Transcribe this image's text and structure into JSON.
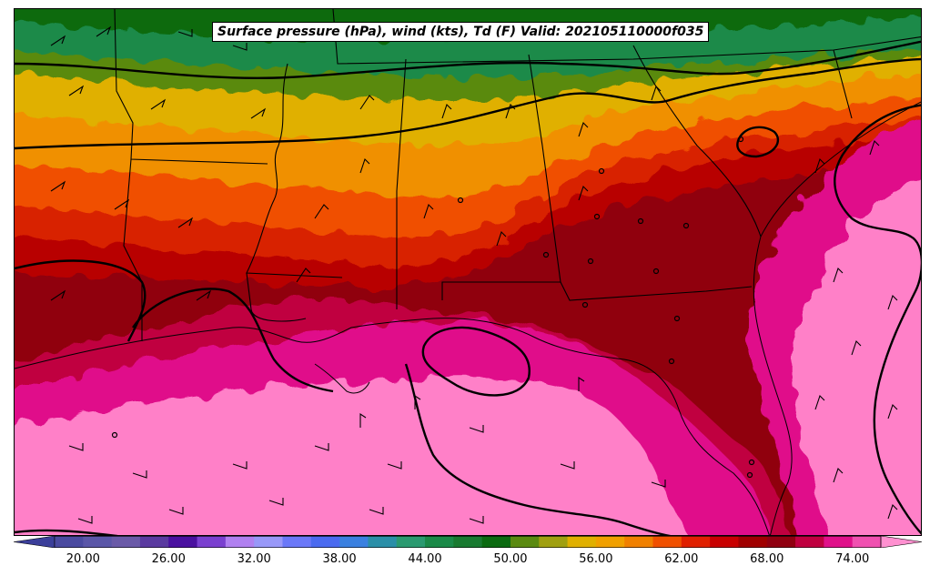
{
  "title": "Surface pressure (hPa), wind (kts), Td (F) Valid: 202105110000f035",
  "colorbar": {
    "min": 18,
    "max": 76,
    "step": 2,
    "tick_labels": [
      "20.00",
      "26.00",
      "32.00",
      "38.00",
      "44.00",
      "50.00",
      "56.00",
      "62.00",
      "68.00",
      "74.00"
    ],
    "tick_values": [
      20,
      26,
      32,
      38,
      44,
      50,
      56,
      62,
      68,
      74
    ],
    "colors": [
      "#3b3f9a",
      "#4a4aa0",
      "#5a56a8",
      "#6a5aa8",
      "#5a3aa0",
      "#4a10a0",
      "#7a40d0",
      "#b080f0",
      "#9898f8",
      "#6a78f8",
      "#4a6af0",
      "#3a80e0",
      "#2a8fa8",
      "#2a9a70",
      "#1a8a48",
      "#187a30",
      "#0a6a10",
      "#5a8a10",
      "#a0a010",
      "#e0b000",
      "#f0a000",
      "#f08000",
      "#f05000",
      "#e02000",
      "#c80000",
      "#a00000",
      "#900010",
      "#c00040",
      "#e0108a",
      "#f050b0",
      "#ff90d0"
    ]
  },
  "map_colors": {
    "dewpoint_30s": "#0a6a10",
    "dewpoint_40s": "#1a8a48",
    "dewpoint_50": "#5a8a10",
    "dewpoint_52": "#e0b000",
    "dewpoint_56": "#f09000",
    "dewpoint_58": "#f05000",
    "dewpoint_60": "#d82000",
    "dewpoint_62": "#b80000",
    "dewpoint_64": "#900010",
    "dewpoint_66": "#c00040",
    "dewpoint_70": "#e0108a",
    "dewpoint_74": "#ff80c8",
    "border": "#000000"
  }
}
